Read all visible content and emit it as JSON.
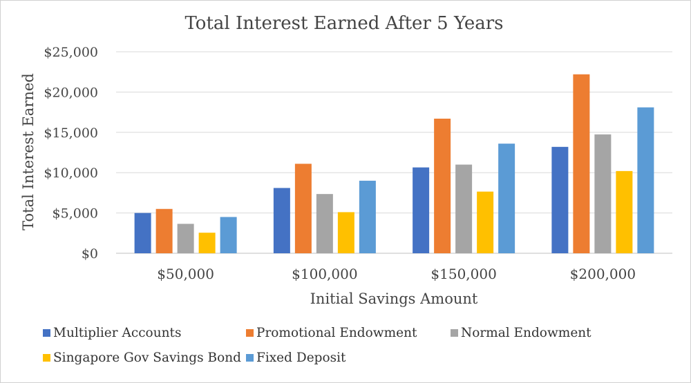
{
  "chart_data": {
    "type": "bar",
    "title": "Total Interest Earned After 5 Years",
    "xlabel": "Initial Savings Amount",
    "ylabel": "Total Interest Earned",
    "categories": [
      "$50,000",
      "$100,000",
      "$150,000",
      "$200,000"
    ],
    "ylim": [
      0,
      25000
    ],
    "yticks": [
      0,
      5000,
      10000,
      15000,
      20000,
      25000
    ],
    "ytick_labels": [
      "$0",
      "$5,000",
      "$10,000",
      "$15,000",
      "$20,000",
      "$25,000"
    ],
    "grid": true,
    "legend_position": "bottom",
    "series": [
      {
        "name": "Multiplier Accounts",
        "color": "#4472C4",
        "values": [
          5000,
          8100,
          10650,
          13200
        ]
      },
      {
        "name": "Promotional Endowment",
        "color": "#ED7D31",
        "values": [
          5500,
          11100,
          16700,
          22200
        ]
      },
      {
        "name": "Normal Endowment",
        "color": "#A5A5A5",
        "values": [
          3650,
          7350,
          11000,
          14750
        ]
      },
      {
        "name": "Singapore Gov Savings Bond",
        "color": "#FFC000",
        "values": [
          2550,
          5100,
          7650,
          10200
        ]
      },
      {
        "name": "Fixed Deposit",
        "color": "#5B9BD5",
        "values": [
          4500,
          9000,
          13600,
          18100
        ]
      }
    ]
  }
}
